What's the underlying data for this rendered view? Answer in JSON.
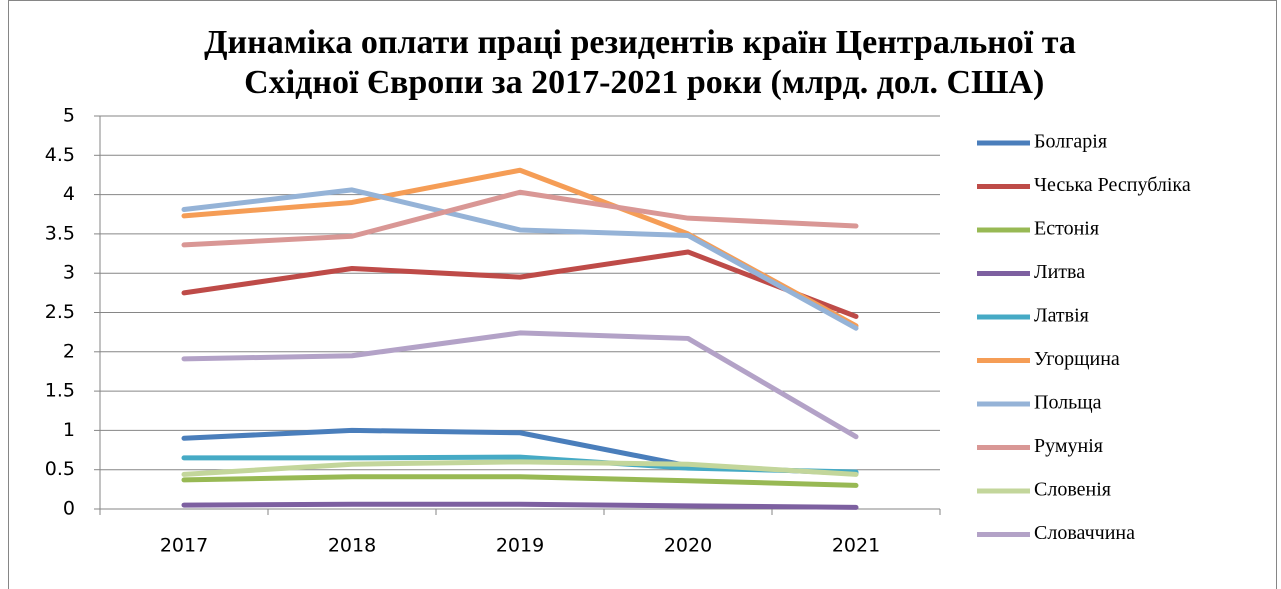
{
  "chart_data": {
    "type": "line",
    "title": "Динаміка оплати праці резидентів країн Центральної та Східної Європи за 2017-2021 роки (млрд. дол. США)",
    "categories": [
      "2017",
      "2018",
      "2019",
      "2020",
      "2021"
    ],
    "ylim": [
      0,
      5
    ],
    "yticks": [
      0,
      0.5,
      1,
      1.5,
      2,
      2.5,
      3,
      3.5,
      4,
      4.5,
      5
    ],
    "grid": true,
    "legend": "right",
    "series": [
      {
        "name": "Болгарія",
        "color": "#4a7ebb",
        "values": [
          0.9,
          1.0,
          0.97,
          0.55,
          0.45
        ]
      },
      {
        "name": "Чеська Республіка",
        "color": "#be4b48",
        "values": [
          2.75,
          3.06,
          2.95,
          3.27,
          2.45
        ]
      },
      {
        "name": "Естонія",
        "color": "#98b954",
        "values": [
          0.37,
          0.41,
          0.41,
          0.36,
          0.3
        ]
      },
      {
        "name": "Литва",
        "color": "#7d60a0",
        "values": [
          0.05,
          0.06,
          0.06,
          0.04,
          0.02
        ]
      },
      {
        "name": "Латвія",
        "color": "#46aac5",
        "values": [
          0.65,
          0.65,
          0.66,
          0.52,
          0.47
        ]
      },
      {
        "name": "Угорщина",
        "color": "#f59d56",
        "values": [
          3.73,
          3.9,
          4.31,
          3.5,
          2.33
        ]
      },
      {
        "name": "Польща",
        "color": "#95b3d7",
        "values": [
          3.81,
          4.06,
          3.55,
          3.48,
          2.3
        ]
      },
      {
        "name": "Румунія",
        "color": "#d99795",
        "values": [
          3.36,
          3.47,
          4.03,
          3.7,
          3.6
        ]
      },
      {
        "name": "Словенія",
        "color": "#c3d69b",
        "values": [
          0.44,
          0.57,
          0.6,
          0.57,
          0.44
        ]
      },
      {
        "name": "Словаччина",
        "color": "#b3a2c7",
        "values": [
          1.91,
          1.95,
          2.24,
          2.17,
          0.92
        ]
      }
    ]
  }
}
